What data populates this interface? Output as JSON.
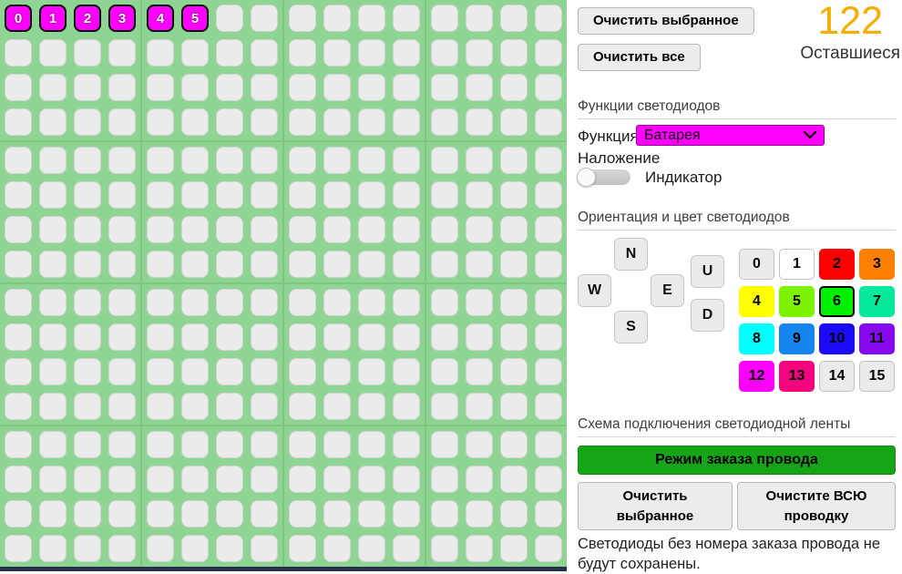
{
  "grid": {
    "rows": 16,
    "cols": 16,
    "block_size": 4,
    "active_cells": [
      {
        "row": 0,
        "col": 0,
        "label": "0"
      },
      {
        "row": 0,
        "col": 1,
        "label": "1"
      },
      {
        "row": 0,
        "col": 2,
        "label": "2"
      },
      {
        "row": 0,
        "col": 3,
        "label": "3"
      },
      {
        "row": 0,
        "col": 4,
        "label": "4"
      },
      {
        "row": 0,
        "col": 5,
        "label": "5"
      }
    ],
    "colors": {
      "background": "#8ed492",
      "divider": "#7cc680",
      "cell": "#ebebeb",
      "cell_border": "#d2d2d2",
      "active": "#ff00ff",
      "active_border": "#000000",
      "edge_strip": "#233047"
    }
  },
  "top": {
    "clear_selected_label": "Очистить выбранное",
    "clear_all_label": "Очистить все",
    "counter_value": "122",
    "counter_label": "Оставшиеся",
    "counter_color": "#f5ad00"
  },
  "functions": {
    "header": "Функции светодиодов",
    "function_label": "Функция",
    "function_value": "Батарея",
    "select_color": "#ff00ff",
    "overlay_label": "Наложение",
    "toggle_label": "Индикатор",
    "toggle_state": "off"
  },
  "orientation": {
    "header": "Ориентация и цвет светодиодов",
    "dpad": [
      {
        "key": "n",
        "label": "N"
      },
      {
        "key": "w",
        "label": "W"
      },
      {
        "key": "e",
        "label": "E"
      },
      {
        "key": "s",
        "label": "S"
      },
      {
        "key": "u",
        "label": "U"
      },
      {
        "key": "d",
        "label": "D"
      }
    ],
    "palette": [
      {
        "label": "0",
        "color": "#ebebeb",
        "border": "#c2c2c2"
      },
      {
        "label": "1",
        "color": "#ffffff",
        "border": "#c2c2c2"
      },
      {
        "label": "2",
        "color": "#ff0000"
      },
      {
        "label": "3",
        "color": "#ff8000"
      },
      {
        "label": "4",
        "color": "#ffff00"
      },
      {
        "label": "5",
        "color": "#7df202"
      },
      {
        "label": "6",
        "color": "#00f000",
        "selected": true
      },
      {
        "label": "7",
        "color": "#06e99a"
      },
      {
        "label": "8",
        "color": "#00ffff"
      },
      {
        "label": "9",
        "color": "#1585f0"
      },
      {
        "label": "10",
        "color": "#1a0af5"
      },
      {
        "label": "11",
        "color": "#8609f0"
      },
      {
        "label": "12",
        "color": "#ff00ff"
      },
      {
        "label": "13",
        "color": "#f2057f"
      },
      {
        "label": "14",
        "color": "#ebebeb",
        "border": "#c2c2c2"
      },
      {
        "label": "15",
        "color": "#ebebeb",
        "border": "#c2c2c2"
      }
    ],
    "selected_color": "6"
  },
  "wiring": {
    "header": "Схема подключения светодиодной ленты",
    "mode_button_label": "Режим заказа провода",
    "mode_button_color": "#16a516",
    "clear_selected_label": "Очистить выбранное",
    "clear_all_label": "Очистите ВСЮ проводку",
    "note": "Светодиоды без номера заказа провода не будут сохранены."
  }
}
